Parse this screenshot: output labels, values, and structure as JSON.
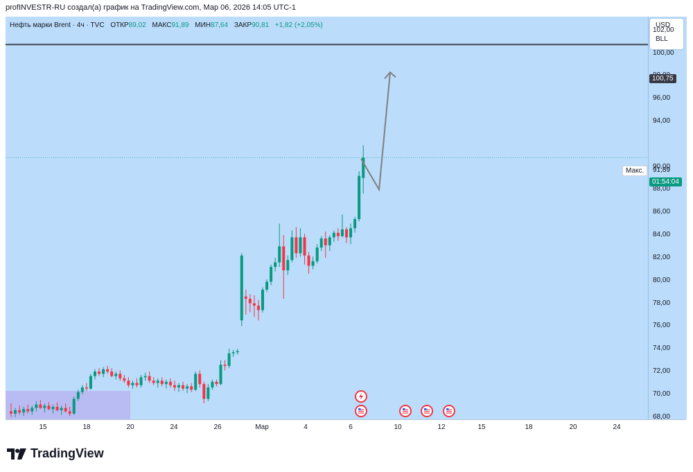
{
  "header": {
    "author_line": "profINVESTR-RU создал(а) график на TradingView.com, Мар 06, 2026 14:05 UTC-1"
  },
  "legend": {
    "symbol": "Нефть марки Brent · 4ч · TVC",
    "open_label": "ОТКР",
    "open": "89,02",
    "high_label": "МАКС",
    "high": "91,89",
    "low_label": "МИН",
    "low": "87,64",
    "close_label": "ЗАКР",
    "close": "90,81",
    "change": "+1,82 (+2,05%)"
  },
  "units": {
    "currency": "USD",
    "unit": "BLL"
  },
  "price_axis": {
    "labels": [
      "102,00",
      "100,00",
      "98,00",
      "96,00",
      "94,00",
      "90,00",
      "88,00",
      "86,00",
      "84,00",
      "82,00",
      "80,00",
      "78,00",
      "76,00",
      "74,00",
      "72,00",
      "70,00",
      "68,00"
    ],
    "hline_price_tag": "100,75",
    "max_label": "Макс.",
    "max_value": "91,89",
    "countdown": "01:54:04"
  },
  "time_axis": {
    "labels": [
      "15",
      "18",
      "20",
      "24",
      "26",
      "Мар",
      "4",
      "6",
      "10",
      "12",
      "15",
      "18",
      "20",
      "24"
    ]
  },
  "brand": {
    "name": "TradingView"
  },
  "colors": {
    "background": "#bbdcfa",
    "up": "#089981",
    "down": "#f23645",
    "hline": "#434651",
    "arrow": "#7f7f7f",
    "zone": "#b8b6f0"
  },
  "chart_data": {
    "type": "candlestick",
    "title": "Нефть марки Brent · 4ч · TVC",
    "x_axis_labels": [
      "15",
      "18",
      "20",
      "24",
      "26",
      "Мар",
      "4",
      "6",
      "10",
      "12",
      "15",
      "18",
      "20",
      "24"
    ],
    "y_axis_labels": [
      "102,00",
      "100,00",
      "98,00",
      "96,00",
      "94,00",
      "90,00",
      "88,00",
      "86,00",
      "84,00",
      "82,00",
      "80,00",
      "78,00",
      "76,00",
      "74,00",
      "72,00",
      "70,00",
      "68,00"
    ],
    "ylim": [
      67.8,
      103.2
    ],
    "horizontal_line": 100.75,
    "last_candle": {
      "open": 89.02,
      "high": 91.89,
      "low": 87.64,
      "close": 90.81
    },
    "projection_path": [
      90.7,
      88.0,
      98.3
    ],
    "candles": [
      [
        68.5,
        69.2,
        68.0,
        68.3
      ],
      [
        68.3,
        68.8,
        68.0,
        68.6
      ],
      [
        68.6,
        69.0,
        68.2,
        68.4
      ],
      [
        68.4,
        68.9,
        68.1,
        68.7
      ],
      [
        68.7,
        69.1,
        68.3,
        68.5
      ],
      [
        68.5,
        69.0,
        68.2,
        68.8
      ],
      [
        68.8,
        69.4,
        68.5,
        69.1
      ],
      [
        69.1,
        69.5,
        68.7,
        68.8
      ],
      [
        68.8,
        69.2,
        68.4,
        69.0
      ],
      [
        69.0,
        69.3,
        68.6,
        68.7
      ],
      [
        68.7,
        69.1,
        68.3,
        68.9
      ],
      [
        68.9,
        69.3,
        68.5,
        68.6
      ],
      [
        68.6,
        69.0,
        68.2,
        68.8
      ],
      [
        68.8,
        69.2,
        68.4,
        68.5
      ],
      [
        68.5,
        68.9,
        68.1,
        68.3
      ],
      [
        68.3,
        69.8,
        68.2,
        69.6
      ],
      [
        69.6,
        70.4,
        69.4,
        70.2
      ],
      [
        70.2,
        70.8,
        70.0,
        70.6
      ],
      [
        70.6,
        71.0,
        70.3,
        70.5
      ],
      [
        70.5,
        71.8,
        70.4,
        71.6
      ],
      [
        71.6,
        72.2,
        71.3,
        72.0
      ],
      [
        72.0,
        72.3,
        71.6,
        71.8
      ],
      [
        71.8,
        72.4,
        71.5,
        72.2
      ],
      [
        72.2,
        72.5,
        71.8,
        72.0
      ],
      [
        72.0,
        72.3,
        71.5,
        71.6
      ],
      [
        71.6,
        72.0,
        71.3,
        71.8
      ],
      [
        71.8,
        72.1,
        71.2,
        71.4
      ],
      [
        71.4,
        71.7,
        71.0,
        71.2
      ],
      [
        71.2,
        71.5,
        70.6,
        70.8
      ],
      [
        70.8,
        71.2,
        70.5,
        71.0
      ],
      [
        71.0,
        71.4,
        70.6,
        70.8
      ],
      [
        70.8,
        71.7,
        70.6,
        71.5
      ],
      [
        71.5,
        71.9,
        71.2,
        71.6
      ],
      [
        71.6,
        72.0,
        71.0,
        71.2
      ],
      [
        71.2,
        71.5,
        70.8,
        71.0
      ],
      [
        71.0,
        71.4,
        70.6,
        71.2
      ],
      [
        71.2,
        71.5,
        70.7,
        70.9
      ],
      [
        70.9,
        71.3,
        70.5,
        71.1
      ],
      [
        71.1,
        71.4,
        70.6,
        70.8
      ],
      [
        70.8,
        71.2,
        70.3,
        70.6
      ],
      [
        70.6,
        71.0,
        70.2,
        70.8
      ],
      [
        70.8,
        71.1,
        70.3,
        70.5
      ],
      [
        70.5,
        70.9,
        70.1,
        70.7
      ],
      [
        70.7,
        71.0,
        70.2,
        70.4
      ],
      [
        70.4,
        72.0,
        70.3,
        71.8
      ],
      [
        71.8,
        72.1,
        70.6,
        70.9
      ],
      [
        70.9,
        71.1,
        69.2,
        69.6
      ],
      [
        69.6,
        70.9,
        69.4,
        70.6
      ],
      [
        70.6,
        71.3,
        70.4,
        71.1
      ],
      [
        71.1,
        71.3,
        70.7,
        70.9
      ],
      [
        70.9,
        73.0,
        70.8,
        72.6
      ],
      [
        72.6,
        73.0,
        72.1,
        72.5
      ],
      [
        72.5,
        74.0,
        72.3,
        73.6
      ],
      [
        73.6,
        73.9,
        73.3,
        73.7
      ],
      [
        73.7,
        74.0,
        73.5,
        73.8
      ],
      [
        76.5,
        82.4,
        76.0,
        82.2
      ],
      [
        78.6,
        79.2,
        77.0,
        78.4
      ],
      [
        78.4,
        78.8,
        77.2,
        78.0
      ],
      [
        78.0,
        78.7,
        76.8,
        77.8
      ],
      [
        77.8,
        78.3,
        76.5,
        77.4
      ],
      [
        77.4,
        79.4,
        77.2,
        79.2
      ],
      [
        79.2,
        80.1,
        79.0,
        79.9
      ],
      [
        79.9,
        81.4,
        79.6,
        81.2
      ],
      [
        81.2,
        82.0,
        80.8,
        81.6
      ],
      [
        81.6,
        85.0,
        81.2,
        83.0
      ],
      [
        83.0,
        84.0,
        78.4,
        80.9
      ],
      [
        80.9,
        82.2,
        80.5,
        81.8
      ],
      [
        81.8,
        84.4,
        81.6,
        83.8
      ],
      [
        83.8,
        84.7,
        82.0,
        82.4
      ],
      [
        82.4,
        84.6,
        82.1,
        83.8
      ],
      [
        83.8,
        84.1,
        81.4,
        82.2
      ],
      [
        82.2,
        82.5,
        80.6,
        81.3
      ],
      [
        81.3,
        82.1,
        81.0,
        81.7
      ],
      [
        81.7,
        83.2,
        81.5,
        82.9
      ],
      [
        82.9,
        83.9,
        82.6,
        83.7
      ],
      [
        83.7,
        84.3,
        82.0,
        83.1
      ],
      [
        83.1,
        84.0,
        82.6,
        83.8
      ],
      [
        83.8,
        84.4,
        83.4,
        84.2
      ],
      [
        84.2,
        84.6,
        83.5,
        83.9
      ],
      [
        83.9,
        85.8,
        83.8,
        84.5
      ],
      [
        84.5,
        84.7,
        83.3,
        83.8
      ],
      [
        83.8,
        85.0,
        83.2,
        84.6
      ],
      [
        84.6,
        85.6,
        84.2,
        85.4
      ],
      [
        85.4,
        89.6,
        85.2,
        89.2
      ],
      [
        89.02,
        91.89,
        87.64,
        90.81
      ]
    ]
  }
}
